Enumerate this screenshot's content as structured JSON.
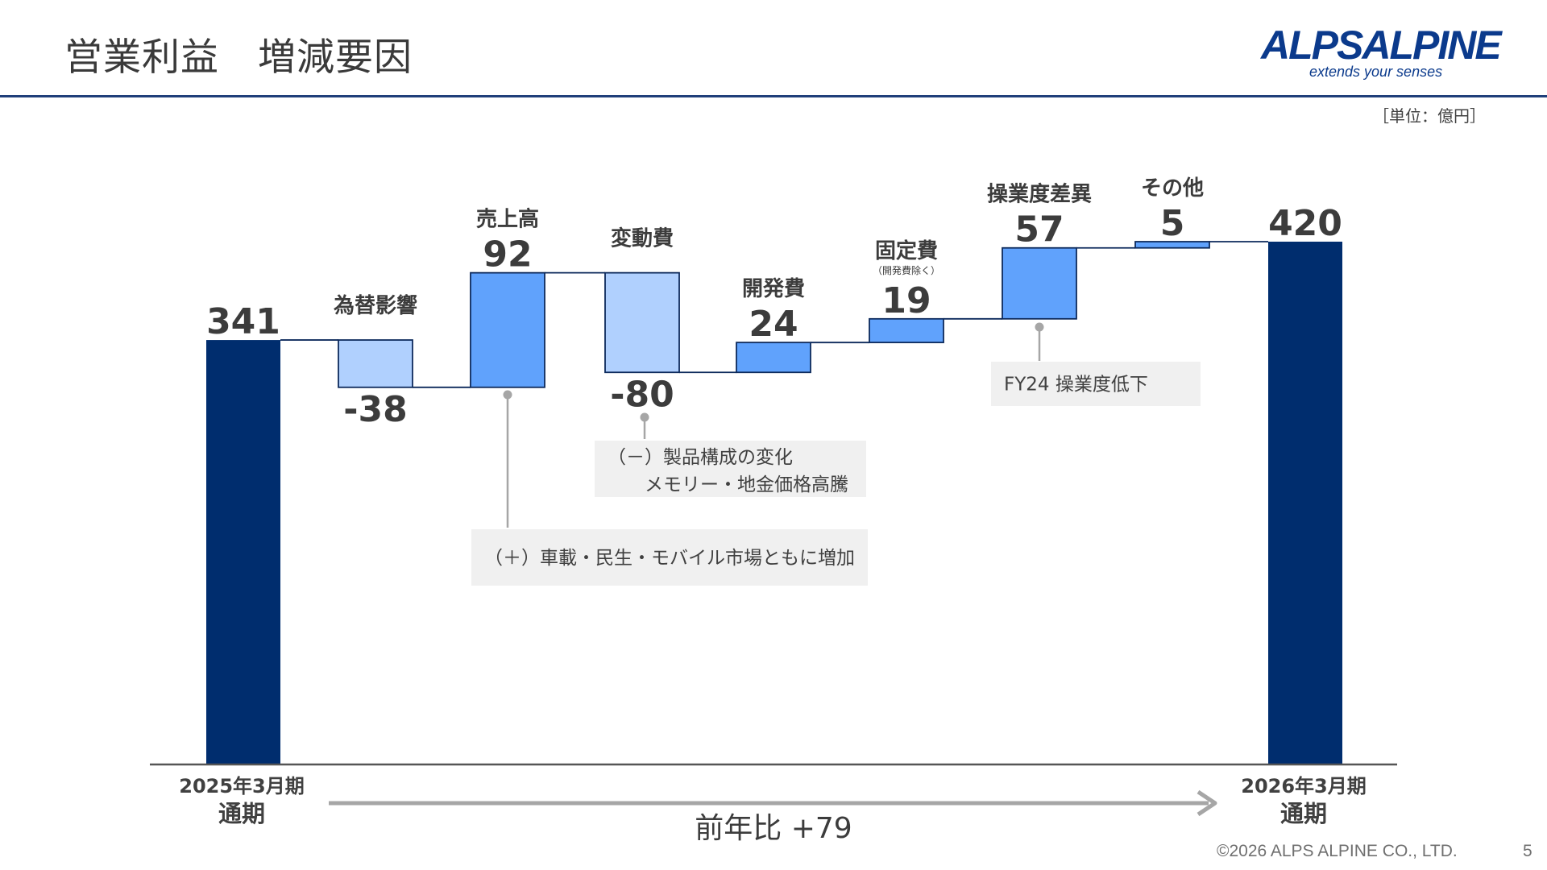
{
  "page": {
    "title": "営業利益　増減要因",
    "unit": "［単位：億円］",
    "logo_main": "ALPSALPINE",
    "logo_tagline": "extends your senses",
    "footer": "©2026 ALPS ALPINE CO., LTD.",
    "page_number": "5"
  },
  "colors": {
    "total": "#002d6e",
    "increase": "#60a2fc",
    "decrease": "#b0d0fe",
    "bar_border": "#0d2a5c",
    "axis": "#555555",
    "note_bg": "#f0f0f0",
    "arrow": "#a6a6a6"
  },
  "chart_data": {
    "type": "waterfall",
    "title": "",
    "xlabel": "",
    "ylabel": "",
    "ylim": [
      0,
      460
    ],
    "steps": [
      {
        "label": "",
        "value": 341,
        "display": "341",
        "kind": "total",
        "axis_label": "2025年3月期",
        "axis_label2": "通期"
      },
      {
        "label": "為替影響",
        "value": -38,
        "display": "-38",
        "kind": "decrease"
      },
      {
        "label": "売上高",
        "value": 92,
        "display": "92",
        "kind": "increase"
      },
      {
        "label": "変動費",
        "value": -80,
        "display": "-80",
        "kind": "decrease"
      },
      {
        "label": "開発費",
        "value": 24,
        "display": "24",
        "kind": "increase"
      },
      {
        "label": "固定費",
        "sublabel": "（開発費除く）",
        "value": 19,
        "display": "19",
        "kind": "increase"
      },
      {
        "label": "操業度差異",
        "value": 57,
        "display": "57",
        "kind": "increase"
      },
      {
        "label": "その他",
        "value": 5,
        "display": "5",
        "kind": "increase"
      },
      {
        "label": "",
        "value": 420,
        "display": "420",
        "kind": "total",
        "axis_label": "2026年3月期",
        "axis_label2": "通期"
      }
    ],
    "annotations": [
      {
        "step": 2,
        "lines": [
          "（＋）車載・民生・モバイル市場ともに増加"
        ]
      },
      {
        "step": 3,
        "lines": [
          "（－）製品構成の変化",
          "　　メモリー・地金価格高騰"
        ]
      },
      {
        "step": 6,
        "lines": [
          "FY24 操業度低下"
        ]
      }
    ],
    "comparison": "前年比 +79"
  }
}
